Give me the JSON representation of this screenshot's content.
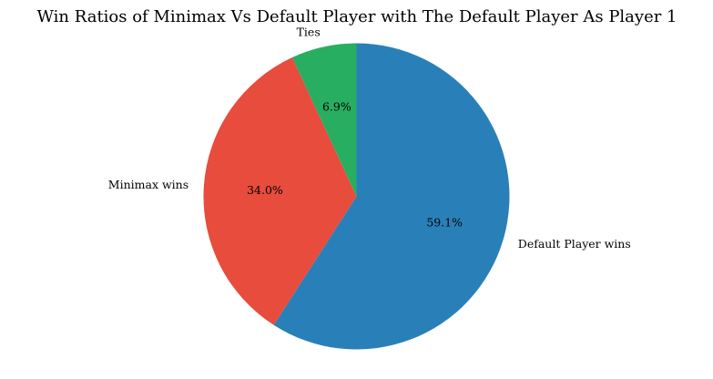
{
  "chart_data": {
    "type": "pie",
    "title": "Win Ratios of Minimax Vs Default Player with The Default Player As Player 1",
    "start_angle_deg": 90,
    "direction": "clockwise",
    "slices": [
      {
        "label": "Default Player wins",
        "value": 59.1,
        "pct_text": "59.1%",
        "color": "#2980b9"
      },
      {
        "label": "Minimax wins",
        "value": 34.0,
        "pct_text": "34.0%",
        "color": "#e74c3c"
      },
      {
        "label": "Ties",
        "value": 6.9,
        "pct_text": "6.9%",
        "color": "#27ae60"
      }
    ]
  }
}
